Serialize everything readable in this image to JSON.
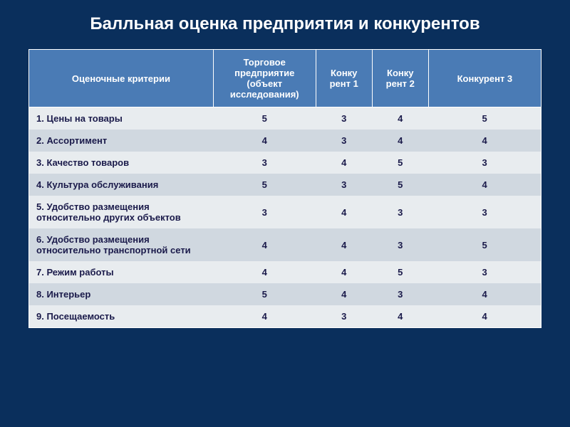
{
  "slide": {
    "title": "Балльная оценка предприятия и конкурентов",
    "background_color": "#0a2f5c",
    "title_color": "#ffffff",
    "title_fontsize": 24
  },
  "table": {
    "type": "table",
    "header_bg_color": "#4a7bb5",
    "header_text_color": "#ffffff",
    "row_odd_color": "#e8ecef",
    "row_even_color": "#d0d8e0",
    "cell_text_color": "#1a1a4a",
    "border_color": "#ffffff",
    "columns": [
      "Оценочные критерии",
      "Торговое предприятие (объект исследования)",
      "Конку рент 1",
      "Конку рент 2",
      "Конкурент 3"
    ],
    "rows": [
      {
        "criteria": " 1. Цены на товары",
        "values": [
          "5",
          "3",
          "4",
          "5"
        ]
      },
      {
        "criteria": "2. Ассортимент",
        "values": [
          "4",
          "3",
          "4",
          "4"
        ]
      },
      {
        "criteria": "3. Качество товаров",
        "values": [
          "3",
          "4",
          "5",
          "3"
        ]
      },
      {
        "criteria": "4. Культура обслуживания",
        "values": [
          "5",
          "3",
          "5",
          "4"
        ]
      },
      {
        "criteria": "5. Удобство размещения относительно других объектов",
        "values": [
          "3",
          "4",
          "3",
          "3"
        ]
      },
      {
        "criteria": "6. Удобство размещения относительно транспортной сети",
        "values": [
          "4",
          "4",
          "3",
          "5"
        ]
      },
      {
        "criteria": "7. Режим работы",
        "values": [
          "4",
          "4",
          "5",
          "3"
        ]
      },
      {
        "criteria": "8. Интерьер",
        "values": [
          "5",
          "4",
          "3",
          "4"
        ]
      },
      {
        "criteria": "9. Посещаемость",
        "values": [
          "4",
          "3",
          "4",
          "4"
        ]
      }
    ]
  }
}
